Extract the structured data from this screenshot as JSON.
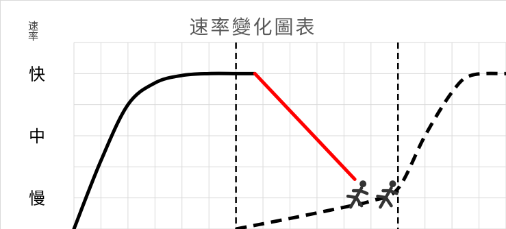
{
  "chart_data": {
    "type": "line",
    "title": "速率變化圖表",
    "ylabel": "速率",
    "xlabel": "",
    "y_ticks": [
      "快",
      "中",
      "慢"
    ],
    "y_tick_values": [
      3,
      2,
      1
    ],
    "ylim": [
      0.5,
      3.5
    ],
    "xlim": [
      0,
      16
    ],
    "grid": true,
    "vlines": [
      6,
      12
    ],
    "series": [
      {
        "style": "solid",
        "color": "#000000",
        "points": [
          [
            0,
            0.5
          ],
          [
            1,
            1.6
          ],
          [
            2,
            2.5
          ],
          [
            3,
            2.85
          ],
          [
            4,
            2.97
          ],
          [
            5,
            3.0
          ],
          [
            6,
            3.0
          ],
          [
            6.7,
            3.0
          ]
        ]
      },
      {
        "style": "solid",
        "color": "#ff0000",
        "points": [
          [
            6.7,
            3.0
          ],
          [
            10.4,
            1.3
          ]
        ]
      },
      {
        "style": "dashed",
        "color": "#000000",
        "points": [
          [
            6,
            0.5
          ],
          [
            8,
            0.67
          ],
          [
            10,
            0.85
          ],
          [
            11,
            0.95
          ],
          [
            12,
            1.15
          ],
          [
            13,
            2.0
          ],
          [
            14,
            2.7
          ],
          [
            14.7,
            2.97
          ],
          [
            16,
            3.0
          ]
        ]
      }
    ],
    "annotations": [
      {
        "type": "runner-icon",
        "x": 10.5,
        "y": 1.05
      },
      {
        "type": "runner-icon",
        "x": 11.6,
        "y": 1.05
      }
    ]
  }
}
